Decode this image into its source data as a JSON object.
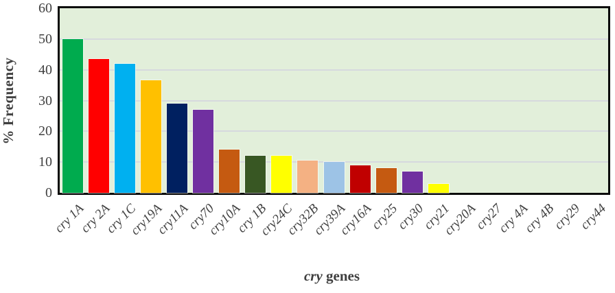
{
  "chart_data": {
    "type": "bar",
    "title": "",
    "ylabel": "% Frequency",
    "xlabel_italic": "cry",
    "xlabel_rest": " genes",
    "ylim": [
      0,
      60
    ],
    "yticks": [
      0,
      10,
      20,
      30,
      40,
      50,
      60
    ],
    "grid": true,
    "legend_position": "none",
    "categories": [
      "cry 1A",
      "cry 2A",
      "cry 1C",
      "cry19A",
      "cry11A",
      "cry70",
      "cry10A",
      "cry 1B",
      "cry24C",
      "cry32B",
      "cry39A",
      "cry16A",
      "cry25",
      "cry30",
      "cry21",
      "cry20A",
      "cry27",
      "cry 4A",
      "cry 4B",
      "cry29",
      "cry44"
    ],
    "values": [
      50,
      43.5,
      42,
      36.5,
      29,
      27,
      14,
      12,
      12,
      10.5,
      10,
      9,
      8,
      7,
      3,
      0,
      0,
      0,
      0,
      0,
      0
    ],
    "bar_colors": [
      "#00ab4e",
      "#ff0000",
      "#00b0f0",
      "#ffc000",
      "#002060",
      "#7030a0",
      "#c55a11",
      "#385723",
      "#ffff00",
      "#f4b183",
      "#9dc3e6",
      "#c00000",
      "#c55a11",
      "#7030a0",
      "#ffff00",
      null,
      null,
      null,
      null,
      null,
      null
    ],
    "plot_background": "#e2efda",
    "grid_color": "#d6d9de",
    "border_color": "#0b0b0b",
    "text_color": "#3f3f3f"
  }
}
